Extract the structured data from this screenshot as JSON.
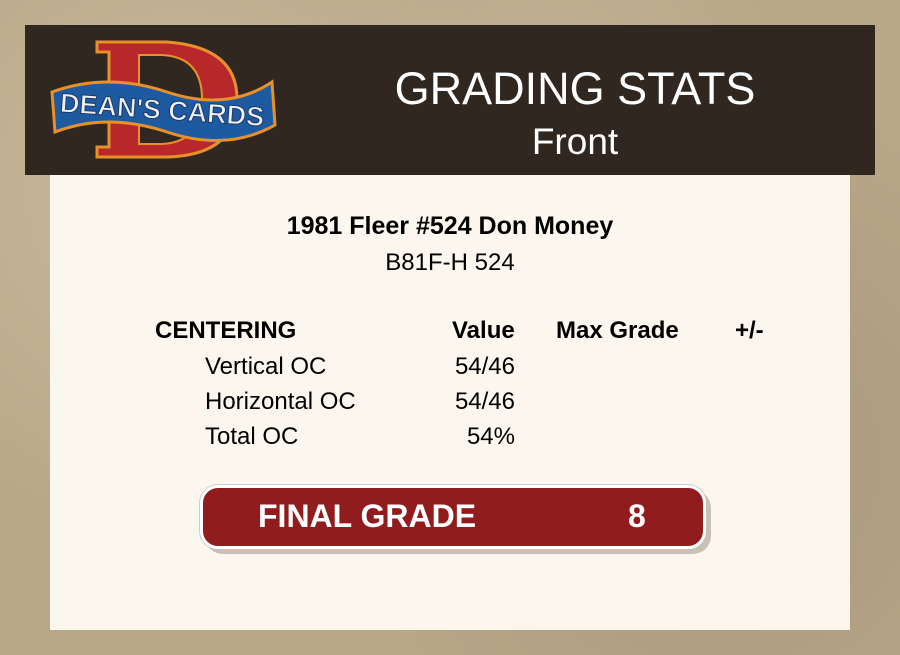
{
  "header": {
    "logo_text": "DEAN'S CARDS",
    "title": "GRADING STATS",
    "subtitle": "Front"
  },
  "card": {
    "title": "1981 Fleer #524 Don Money",
    "code": "B81F-H 524"
  },
  "table": {
    "headers": [
      "CENTERING",
      "Value",
      "Max Grade",
      "+/-"
    ],
    "rows": [
      {
        "label": "Vertical OC",
        "value": "54/46"
      },
      {
        "label": "Horizontal OC",
        "value": "54/46"
      },
      {
        "label": "Total OC",
        "value": "54%"
      }
    ]
  },
  "final": {
    "label": "FINAL GRADE",
    "value": "8"
  },
  "colors": {
    "header_bg": "#302820",
    "panel_bg": "#fbf7ee",
    "grade_bg": "#911c1e"
  }
}
